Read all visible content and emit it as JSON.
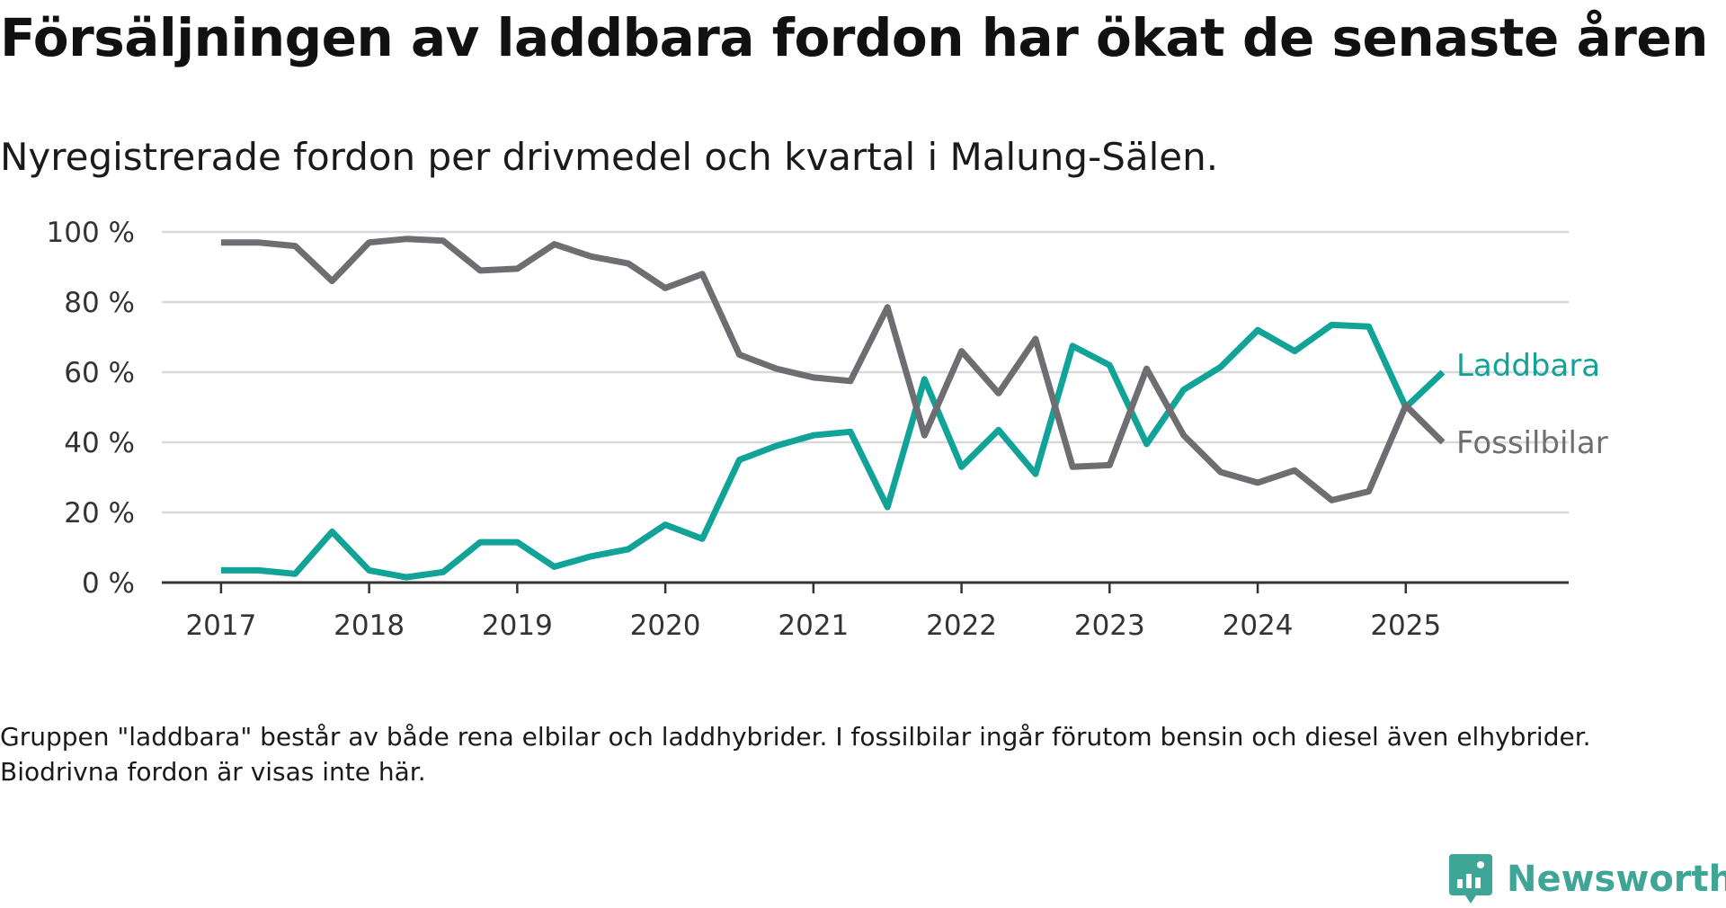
{
  "header": {
    "title": "Försäljningen av laddbara fordon har ökat de senaste åren",
    "subtitle": "Nyregistrerade fordon per drivmedel och kvartal i Malung-Sälen."
  },
  "footnote": "Gruppen \"laddbara\" består av både rena elbilar och laddhybrider. I fossilbilar ingår förutom bensin och diesel även elhybrider. Biodrivna fordon är visas inte här.",
  "brand": {
    "name": "Newsworthy",
    "icon": "newsworthy-logo-icon",
    "color": "#3fa597"
  },
  "chart_data": {
    "type": "line",
    "title": "Försäljningen av laddbara fordon har ökat de senaste åren",
    "subtitle": "Nyregistrerade fordon per drivmedel och kvartal i Malung-Sälen.",
    "xlabel": "",
    "ylabel": "",
    "x": [
      2017.0,
      2017.25,
      2017.5,
      2017.75,
      2018.0,
      2018.25,
      2018.5,
      2018.75,
      2019.0,
      2019.25,
      2019.5,
      2019.75,
      2020.0,
      2020.25,
      2020.5,
      2020.75,
      2021.0,
      2021.25,
      2021.5,
      2021.75,
      2022.0,
      2022.25,
      2022.5,
      2022.75,
      2023.0,
      2023.25,
      2023.5,
      2023.75,
      2024.0,
      2024.25,
      2024.5,
      2024.75,
      2025.0,
      2025.25
    ],
    "xlim": [
      2016.6,
      2026.1
    ],
    "ylim": [
      0,
      100
    ],
    "x_ticks": [
      2017,
      2018,
      2019,
      2020,
      2021,
      2022,
      2023,
      2024,
      2025
    ],
    "x_tick_labels": [
      "2017",
      "2018",
      "2019",
      "2020",
      "2021",
      "2022",
      "2023",
      "2024",
      "2025"
    ],
    "y_ticks": [
      0,
      20,
      40,
      60,
      80,
      100
    ],
    "y_tick_labels": [
      "0 %",
      "20 %",
      "40 %",
      "60 %",
      "80 %",
      "100 %"
    ],
    "grid": "horizontal",
    "legend": "inline labels at line ends",
    "series": [
      {
        "name": "Laddbara",
        "color": "#11a398",
        "values": [
          3.5,
          3.5,
          2.5,
          14.5,
          3.5,
          1.5,
          3,
          11.5,
          11.5,
          4.5,
          7.5,
          9.5,
          16.5,
          12.5,
          35,
          39,
          42,
          43,
          21.5,
          58,
          33,
          43.5,
          31,
          67.5,
          62,
          39.5,
          55,
          61.5,
          72,
          66,
          73.5,
          73,
          50,
          60
        ]
      },
      {
        "name": "Fossilbilar",
        "color": "#6e6d72",
        "values": [
          97,
          97,
          96,
          86,
          97,
          98,
          97.5,
          89,
          89.5,
          96.5,
          93,
          91,
          84,
          88,
          65,
          61,
          58.5,
          57.5,
          78.5,
          42,
          66,
          54,
          69.5,
          33,
          33.5,
          61,
          42,
          31.5,
          28.5,
          32,
          23.5,
          26,
          50.5,
          40
        ]
      }
    ]
  }
}
